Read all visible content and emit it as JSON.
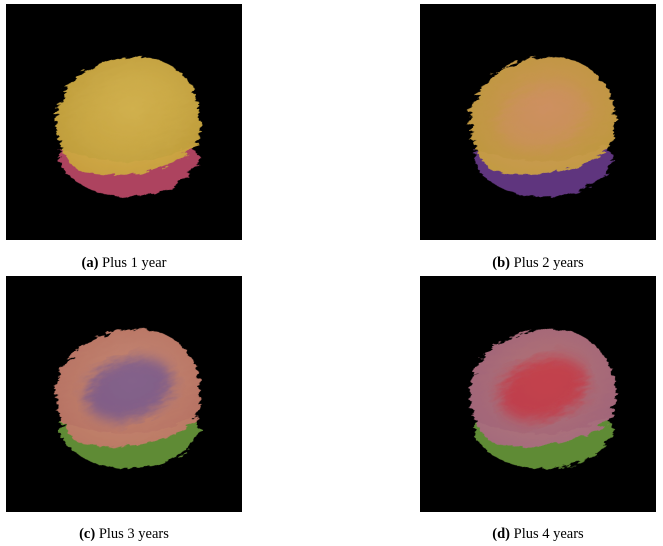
{
  "figure": {
    "subfigures": [
      {
        "label": "(a)",
        "caption": "Plus 1 year",
        "colors": {
          "body": "#c9a43c",
          "highlight": "#e0c05a",
          "stripe": "#c04a6a",
          "inner": "#c9a43c"
        }
      },
      {
        "label": "(b)",
        "caption": "Plus 2 years",
        "colors": {
          "body": "#c8a040",
          "highlight": "#d89a60",
          "stripe": "#6a3c8c",
          "inner": "#d08a70"
        }
      },
      {
        "label": "(c)",
        "caption": "Plus 3 years",
        "colors": {
          "body": "#c07868",
          "highlight": "#d0907a",
          "stripe": "#6a9a3a",
          "inner": "#5a4a9a"
        }
      },
      {
        "label": "(d)",
        "caption": "Plus 4 years",
        "colors": {
          "body": "#a86a80",
          "highlight": "#c07a7a",
          "stripe": "#6a9a3a",
          "inner": "#cc2030"
        }
      }
    ]
  }
}
